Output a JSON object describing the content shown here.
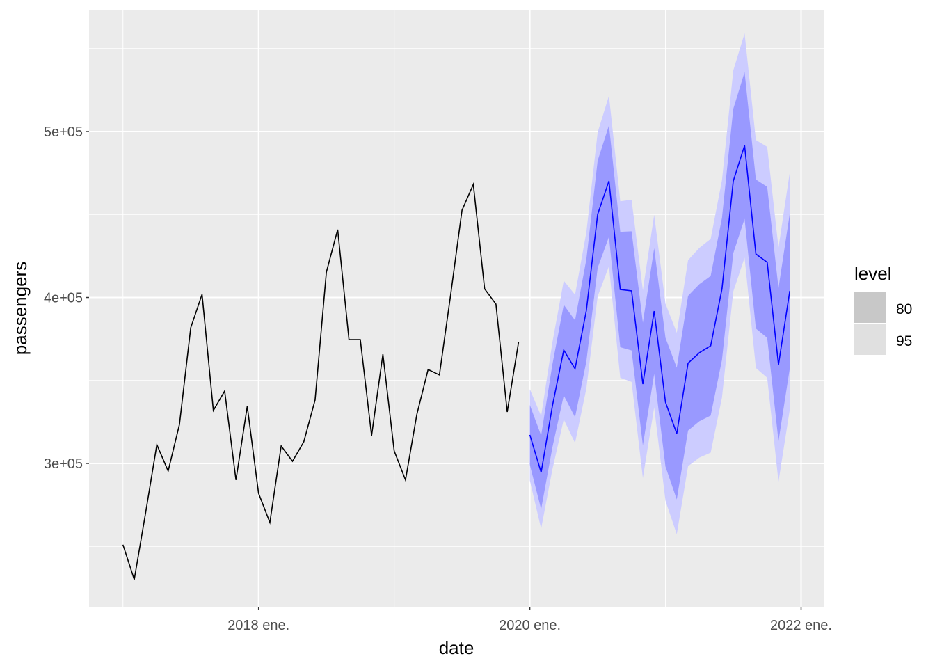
{
  "chart_data": {
    "type": "line",
    "title": "",
    "xlabel": "date",
    "ylabel": "passengers",
    "xlim": [
      "2016-10",
      "2022-03"
    ],
    "ylim": [
      213600,
      573400
    ],
    "grid": true,
    "x_ticks": [
      {
        "date": "2018-01",
        "label": "2018 ene."
      },
      {
        "date": "2020-01",
        "label": "2020 ene."
      },
      {
        "date": "2022-01",
        "label": "2022 ene."
      }
    ],
    "y_ticks": [
      {
        "value": 300000,
        "label": "3e+05"
      },
      {
        "value": 400000,
        "label": "4e+05"
      },
      {
        "value": 500000,
        "label": "5e+05"
      }
    ],
    "legend": {
      "title": "level",
      "position": "right",
      "items": [
        {
          "label": "80",
          "color": "#C8C8C8"
        },
        {
          "label": "95",
          "color": "#E0E0E0"
        }
      ]
    },
    "history": {
      "color": "#000000",
      "start": "2017-01",
      "values": [
        251000,
        230000,
        270000,
        311300,
        295400,
        323500,
        381800,
        401900,
        331900,
        343600,
        290000,
        334400,
        282000,
        264400,
        310500,
        301300,
        313000,
        338200,
        415300,
        440900,
        374600,
        374600,
        316800,
        365800,
        307500,
        290000,
        329400,
        356600,
        353300,
        401900,
        452600,
        468100,
        405200,
        396000,
        331000,
        373000
      ]
    },
    "forecast": {
      "color": "#0000FF",
      "band80_color": "#9999FF",
      "band95_color": "#CCCCFF",
      "start": "2020-01",
      "mean": [
        317200,
        294600,
        334800,
        368300,
        357000,
        392200,
        450100,
        470200,
        404800,
        404000,
        347800,
        391800,
        336900,
        318000,
        360400,
        366700,
        370900,
        405200,
        470200,
        491600,
        426200,
        421200,
        359500,
        404000
      ],
      "lo80": [
        299200,
        272400,
        309800,
        341000,
        327800,
        361400,
        417800,
        436600,
        370000,
        368100,
        310800,
        353900,
        298100,
        278300,
        319800,
        325400,
        328800,
        362400,
        426700,
        447400,
        381300,
        375700,
        313400,
        357300
      ],
      "hi80": [
        335200,
        316800,
        359800,
        395600,
        386200,
        423000,
        482400,
        503800,
        439600,
        439900,
        384800,
        429700,
        375700,
        357700,
        401000,
        408000,
        413000,
        448000,
        513700,
        535800,
        471100,
        466700,
        405600,
        450700
      ],
      "lo95": [
        289700,
        260600,
        296500,
        326500,
        312300,
        345100,
        400700,
        418800,
        351600,
        349100,
        291200,
        333800,
        277500,
        257300,
        298300,
        303500,
        306500,
        339700,
        403600,
        424000,
        357500,
        351600,
        289000,
        332500
      ],
      "hi95": [
        344700,
        328600,
        373100,
        410100,
        401700,
        439300,
        499500,
        521600,
        458000,
        458900,
        404400,
        449800,
        396300,
        378700,
        422500,
        429900,
        435300,
        470700,
        536800,
        559200,
        494900,
        490800,
        430000,
        475500
      ]
    }
  }
}
